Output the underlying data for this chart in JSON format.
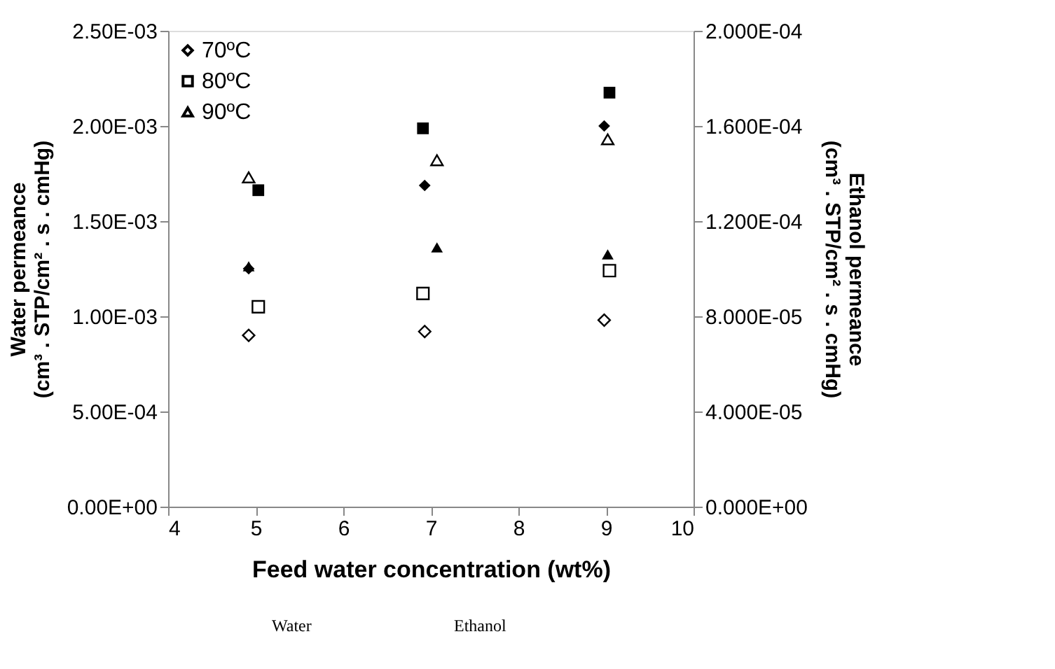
{
  "chart_data": {
    "type": "scatter",
    "xlabel": "Feed water concentration (wt%)",
    "ylabel": "Water permeance\n(cm³ . STP/cm² . s . cmHg)",
    "y2label": "Ethanol permeance\n(cm³ . STP/cm² . s . cmHg)",
    "xlim": [
      4,
      10
    ],
    "xticks": [
      4,
      5,
      6,
      7,
      8,
      9,
      10
    ],
    "ylim": [
      0,
      0.0025
    ],
    "yticks": [
      {
        "value": 0,
        "label": "0.00E+00"
      },
      {
        "value": 0.0005,
        "label": "5.00E-04"
      },
      {
        "value": 0.001,
        "label": "1.00E-03"
      },
      {
        "value": 0.0015,
        "label": "1.50E-03"
      },
      {
        "value": 0.002,
        "label": "2.00E-03"
      },
      {
        "value": 0.0025,
        "label": "2.50E-03"
      }
    ],
    "y2lim": [
      0,
      0.0002
    ],
    "y2ticks": [
      {
        "value": 0,
        "label": "0.000E+00"
      },
      {
        "value": 4e-05,
        "label": "4.000E-05"
      },
      {
        "value": 8e-05,
        "label": "8.000E-05"
      },
      {
        "value": 0.00012,
        "label": "1.200E-04"
      },
      {
        "value": 0.00016,
        "label": "1.600E-04"
      },
      {
        "value": 0.0002,
        "label": "2.000E-04"
      }
    ],
    "grid": false,
    "legend": "top left",
    "series": [
      {
        "name": "70ºC",
        "color": "#000000",
        "marker": "diamond",
        "x": [
          4.92,
          6.93,
          8.98
        ],
        "values": [
          0.0009,
          0.00092,
          0.00098
        ]
      },
      {
        "name": "80ºC",
        "color": "#000000",
        "marker": "square",
        "x": [
          5.03,
          6.91,
          9.04
        ],
        "values": [
          0.00105,
          0.00112,
          0.00124
        ]
      },
      {
        "name": "90ºC",
        "color": "#000000",
        "marker": "triangle",
        "x": [
          4.92,
          7.07,
          9.02
        ],
        "values": [
          0.00173,
          0.00182,
          0.00193
        ]
      },
      {
        "color": "#000000",
        "marker": "diamond",
        "axis": "y2",
        "x": [
          4.92,
          6.93,
          8.98
        ],
        "values": [
          0.0001,
          0.000135,
          0.00016
        ]
      },
      {
        "color": "#000000",
        "marker": "square",
        "axis": "y2",
        "x": [
          5.03,
          6.91,
          9.04
        ],
        "values": [
          0.000133,
          0.000159,
          0.000174
        ]
      },
      {
        "color": "#000000",
        "marker": "triangle",
        "axis": "y2",
        "x": [
          4.92,
          7.07,
          9.02
        ],
        "values": [
          0.000101,
          0.000109,
          0.000106
        ]
      }
    ],
    "annotations": [
      "Water",
      "Ethanol"
    ]
  }
}
